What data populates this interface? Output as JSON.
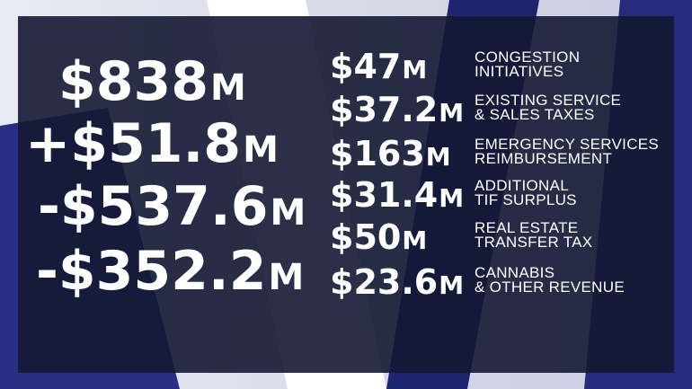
{
  "totals": [
    {
      "amount": "$838",
      "unit": "M"
    },
    {
      "amount": "+$51.8",
      "unit": "M"
    },
    {
      "amount": "-$537.6",
      "unit": "M"
    },
    {
      "amount": "-$352.2",
      "unit": "M"
    }
  ],
  "items": [
    {
      "amount": "$47",
      "unit": "M",
      "label": [
        "CONGESTION",
        "INITIATIVES"
      ]
    },
    {
      "amount": "$37.2",
      "unit": "M",
      "label": [
        "EXISTING SERVICE",
        "& SALES TAXES"
      ]
    },
    {
      "amount": "$163",
      "unit": "M",
      "label": [
        "EMERGENCY SERVICES",
        "REIMBURSEMENT"
      ]
    },
    {
      "amount": "$31.4",
      "unit": "M",
      "label": [
        "ADDITIONAL",
        "TIF SURPLUS"
      ]
    },
    {
      "amount": "$50",
      "unit": "M",
      "label": [
        "REAL ESTATE",
        "TRANSFER TAX"
      ]
    },
    {
      "amount": "$23.6",
      "unit": "M",
      "label": [
        "CANNABIS",
        "& OTHER REVENUE"
      ]
    }
  ]
}
